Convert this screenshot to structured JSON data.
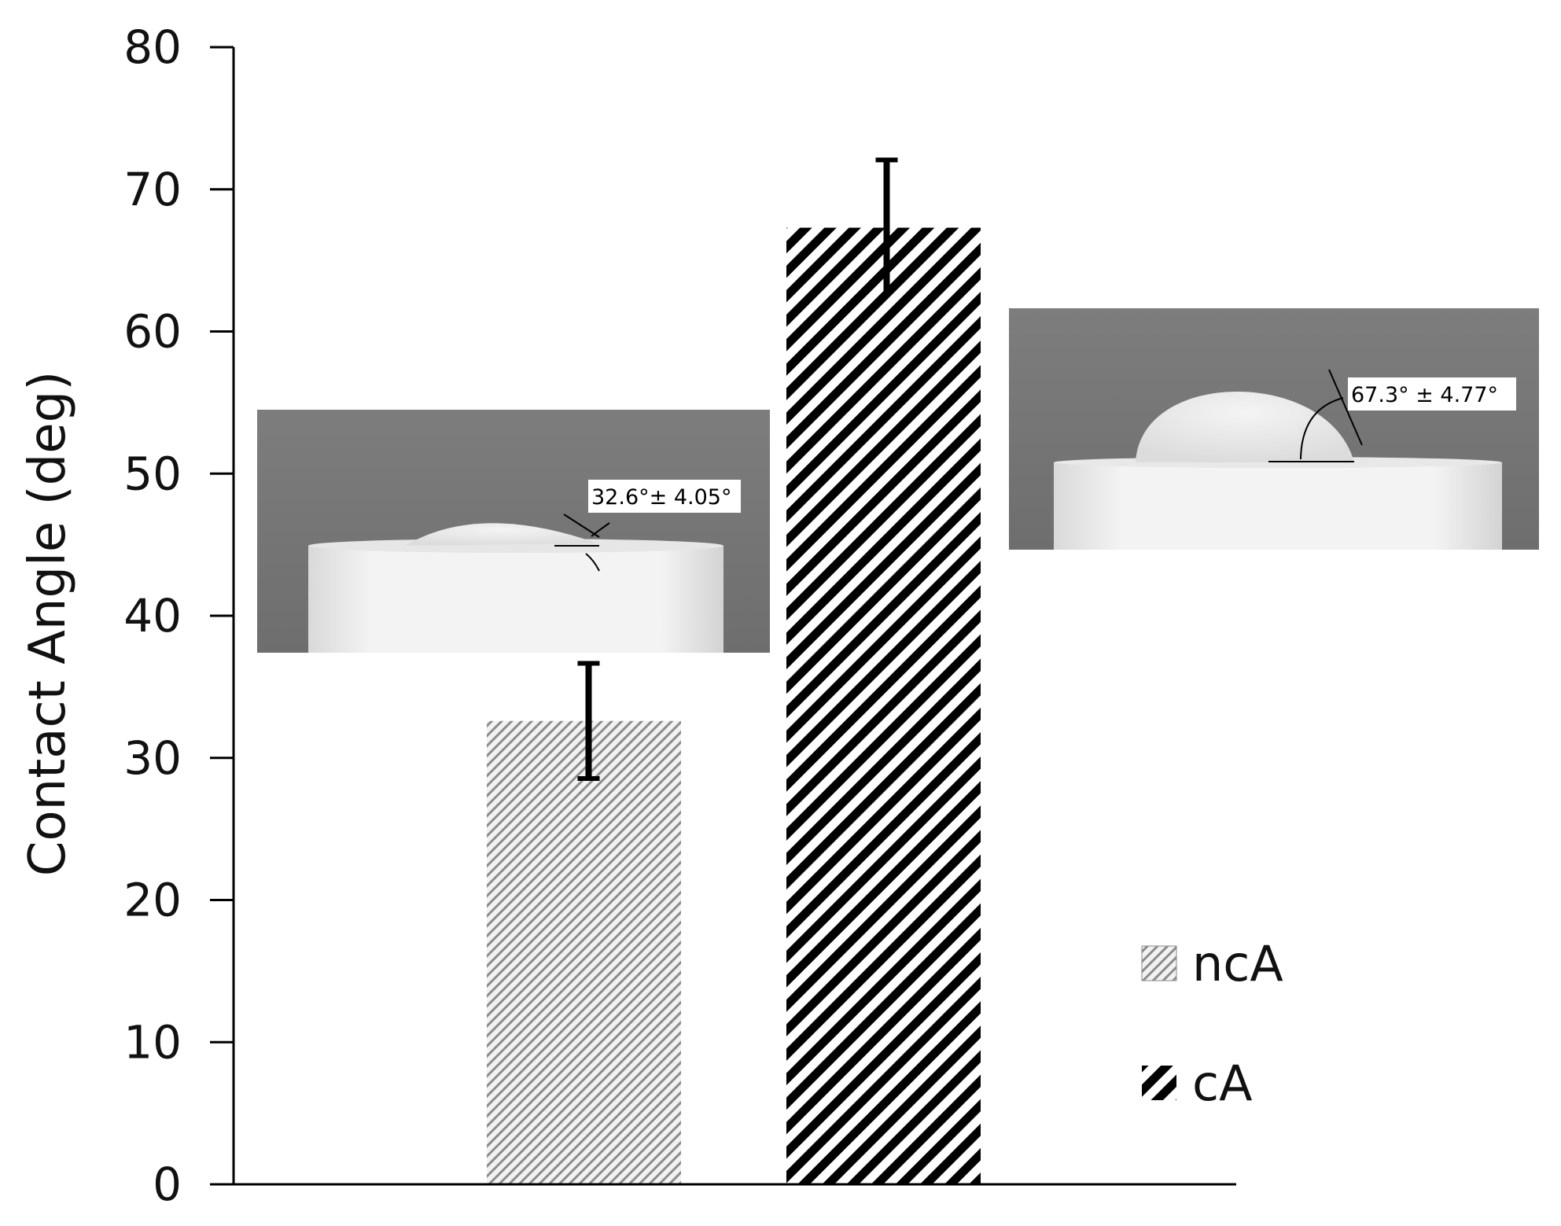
{
  "chart_data": {
    "type": "bar",
    "ylabel": "Contact Angle (deg)",
    "xlabel": "",
    "ylim": [
      0,
      80
    ],
    "yticks": [
      0,
      10,
      20,
      30,
      40,
      50,
      60,
      70,
      80
    ],
    "grid": false,
    "legend_position": "bottom-right",
    "series": [
      {
        "name": "ncA",
        "value": 32.6,
        "error": 4.05,
        "pattern": "fine-diagonal-hatch",
        "color": "#8a8a8a"
      },
      {
        "name": "cA",
        "value": 67.3,
        "error": 4.77,
        "pattern": "bold-diagonal-stripes",
        "color": "#000000"
      }
    ],
    "insets": [
      {
        "series": "ncA",
        "label": "32.6°± 4.05°"
      },
      {
        "series": "cA",
        "label": "67.3°  ± 4.77°"
      }
    ]
  }
}
